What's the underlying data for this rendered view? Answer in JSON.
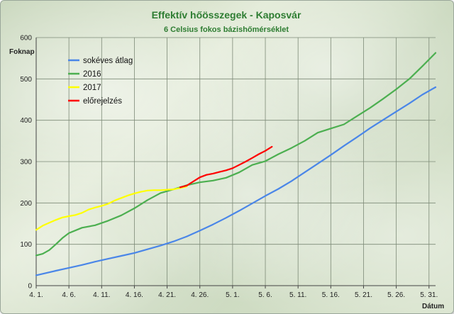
{
  "chart_data": {
    "type": "line",
    "title": "Effektív hőösszegek - Kaposvár",
    "subtitle": "6 Celsius fokos bázishőmérséklet",
    "ylabel": "Foknap",
    "xlabel": "Dátum",
    "ylim": [
      0,
      600
    ],
    "yticks": [
      0,
      100,
      200,
      300,
      400,
      500,
      600
    ],
    "x_day_range": [
      1,
      62
    ],
    "xticks": [
      {
        "day": 1,
        "label": "4. 1."
      },
      {
        "day": 6,
        "label": "4. 6."
      },
      {
        "day": 11,
        "label": "4. 11."
      },
      {
        "day": 16,
        "label": "4. 16."
      },
      {
        "day": 21,
        "label": "4. 21."
      },
      {
        "day": 26,
        "label": "4. 26."
      },
      {
        "day": 31,
        "label": "5. 1."
      },
      {
        "day": 36,
        "label": "5. 6."
      },
      {
        "day": 41,
        "label": "5. 11."
      },
      {
        "day": 46,
        "label": "5. 16."
      },
      {
        "day": 51,
        "label": "5. 21."
      },
      {
        "day": 56,
        "label": "5. 26."
      },
      {
        "day": 61,
        "label": "5. 31."
      }
    ],
    "grid": true,
    "legend_position": "top-left",
    "series": [
      {
        "name": "sokéves átlag",
        "color": "#4a86e8",
        "x": [
          1,
          4,
          6,
          8,
          10,
          12,
          14,
          16,
          18,
          20,
          22,
          24,
          26,
          28,
          30,
          32,
          34,
          36,
          38,
          40,
          42,
          44,
          46,
          48,
          50,
          52,
          54,
          56,
          58,
          60,
          62
        ],
        "y": [
          25,
          36,
          43,
          50,
          58,
          65,
          72,
          79,
          88,
          97,
          107,
          119,
          133,
          148,
          164,
          181,
          199,
          217,
          234,
          253,
          274,
          295,
          316,
          338,
          359,
          381,
          401,
          421,
          441,
          462,
          480
        ]
      },
      {
        "name": "2016",
        "color": "#4caf50",
        "x": [
          1,
          2,
          3,
          4,
          5,
          6,
          8,
          10,
          12,
          14,
          16,
          18,
          20,
          22,
          24,
          26,
          28,
          30,
          32,
          34,
          36,
          38,
          40,
          42,
          44,
          46,
          48,
          50,
          52,
          54,
          56,
          58,
          60,
          62
        ],
        "y": [
          73,
          77,
          86,
          100,
          115,
          127,
          140,
          146,
          157,
          170,
          187,
          207,
          224,
          233,
          243,
          250,
          254,
          261,
          274,
          292,
          301,
          318,
          333,
          350,
          370,
          380,
          390,
          410,
          430,
          452,
          475,
          500,
          531,
          563
        ]
      },
      {
        "name": "2017",
        "color": "#ffff00",
        "x": [
          1,
          2,
          3,
          4,
          5,
          6,
          7,
          8,
          9,
          10,
          11,
          12,
          13,
          14,
          15,
          16,
          17,
          18,
          19,
          20,
          21,
          22,
          23,
          24
        ],
        "y": [
          135,
          145,
          152,
          159,
          165,
          168,
          171,
          176,
          184,
          189,
          193,
          198,
          206,
          212,
          218,
          223,
          227,
          230,
          231,
          231,
          232,
          233,
          236,
          240
        ]
      },
      {
        "name": "előrejelzés",
        "color": "#ff0000",
        "x": [
          23,
          24,
          25,
          26,
          27,
          28,
          29,
          30,
          31,
          32,
          33,
          34,
          35,
          36,
          37
        ],
        "y": [
          238,
          242,
          252,
          262,
          268,
          271,
          275,
          279,
          284,
          292,
          300,
          309,
          318,
          326,
          336
        ]
      }
    ]
  }
}
